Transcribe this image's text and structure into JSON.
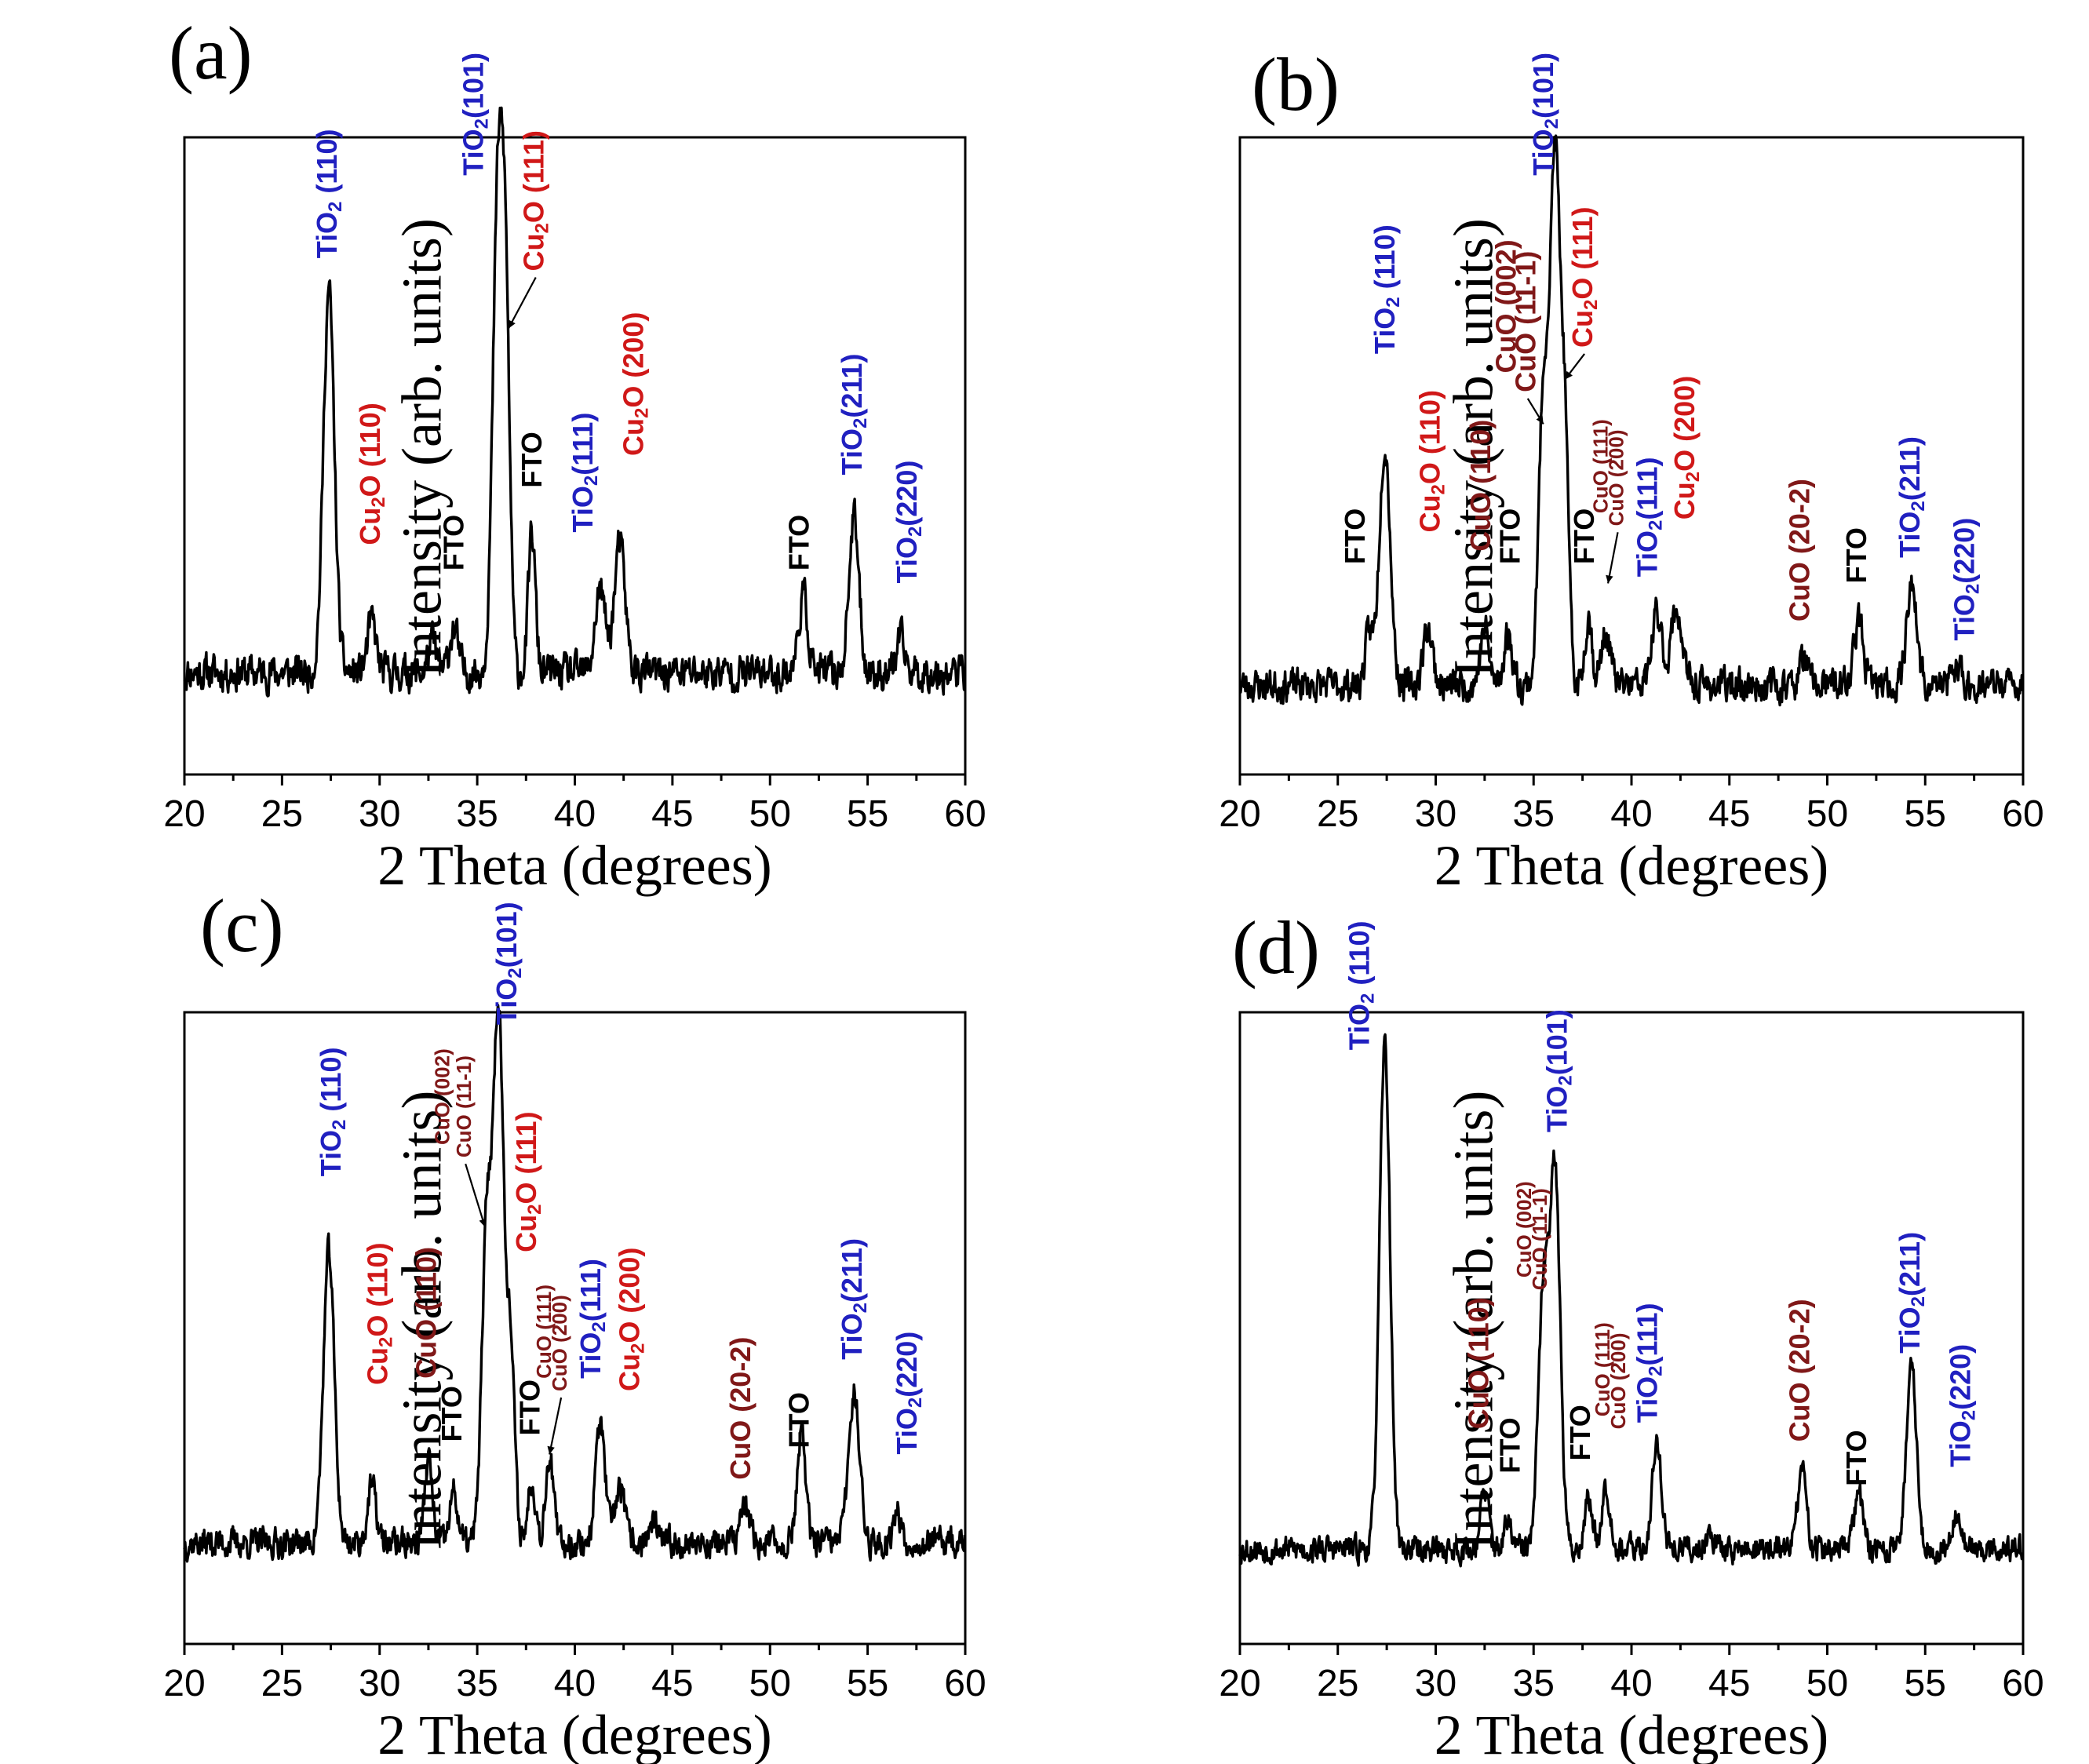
{
  "colors": {
    "tio2": "#2020c0",
    "cu2o": "#d01818",
    "cuo": "#801818",
    "fto": "#000000",
    "trace": "#000000"
  },
  "chart_data": [
    {
      "type": "line",
      "panel": "(a)",
      "xlabel": "2 Theta (degrees)",
      "ylabel": "Intensity (arb. units)",
      "xlim": [
        20,
        60
      ],
      "ylim": [
        0,
        100
      ],
      "xticks": [
        "20",
        "25",
        "30",
        "35",
        "40",
        "45",
        "50",
        "55",
        "60"
      ],
      "baseline": 16,
      "noise": 2.4,
      "seed": 11,
      "peaks": [
        {
          "x": 27.4,
          "h": 60,
          "w": 0.28
        },
        {
          "x": 29.6,
          "h": 8,
          "w": 0.22
        },
        {
          "x": 32.7,
          "h": 5,
          "w": 0.2
        },
        {
          "x": 33.8,
          "h": 7,
          "w": 0.22
        },
        {
          "x": 36.1,
          "h": 80,
          "w": 0.28
        },
        {
          "x": 36.5,
          "h": 38,
          "w": 0.2
        },
        {
          "x": 37.8,
          "h": 22,
          "w": 0.18
        },
        {
          "x": 41.3,
          "h": 13,
          "w": 0.26
        },
        {
          "x": 42.3,
          "h": 20,
          "w": 0.28
        },
        {
          "x": 51.7,
          "h": 12,
          "w": 0.24
        },
        {
          "x": 54.3,
          "h": 24,
          "w": 0.26
        },
        {
          "x": 56.7,
          "h": 5,
          "w": 0.22
        }
      ],
      "annotations": [
        {
          "text": "TiO2 (110)",
          "phase": "tio2",
          "x": 27.4,
          "y": 81
        },
        {
          "text": "Cu2O (110)",
          "phase": "cu2o",
          "x": 29.6,
          "y": 36
        },
        {
          "text": "FTO",
          "phase": "fto",
          "x": 33.9,
          "y": 32
        },
        {
          "text": "TiO2(101)",
          "phase": "tio2",
          "x": 34.9,
          "y": 94
        },
        {
          "text": "Cu2O (111)",
          "phase": "cu2o",
          "x": 38.0,
          "y": 79,
          "arrow_to": [
            36.6,
            70
          ]
        },
        {
          "text": "FTO",
          "phase": "fto",
          "x": 37.9,
          "y": 45
        },
        {
          "text": "TiO2(111)",
          "phase": "tio2",
          "x": 40.5,
          "y": 38
        },
        {
          "text": "Cu2O (200)",
          "phase": "cu2o",
          "x": 43.1,
          "y": 50
        },
        {
          "text": "FTO",
          "phase": "fto",
          "x": 51.6,
          "y": 32
        },
        {
          "text": "TiO2(211)",
          "phase": "tio2",
          "x": 54.3,
          "y": 47
        },
        {
          "text": "TiO2(220)",
          "phase": "tio2",
          "x": 57.1,
          "y": 30
        }
      ]
    },
    {
      "type": "line",
      "panel": "(b)",
      "xlabel": "2 Theta (degrees)",
      "ylabel": "Intensity (arb. units)",
      "xlim": [
        20,
        60
      ],
      "ylim": [
        0,
        100
      ],
      "xticks": [
        "20",
        "25",
        "30",
        "35",
        "40",
        "45",
        "50",
        "55",
        "60"
      ],
      "baseline": 14,
      "noise": 2.2,
      "seed": 23,
      "peaks": [
        {
          "x": 26.6,
          "h": 8,
          "w": 0.2
        },
        {
          "x": 27.4,
          "h": 38,
          "w": 0.28
        },
        {
          "x": 29.6,
          "h": 9,
          "w": 0.24
        },
        {
          "x": 32.5,
          "h": 9,
          "w": 0.22
        },
        {
          "x": 33.7,
          "h": 8,
          "w": 0.22
        },
        {
          "x": 35.5,
          "h": 45,
          "w": 0.24
        },
        {
          "x": 36.1,
          "h": 82,
          "w": 0.26
        },
        {
          "x": 36.6,
          "h": 35,
          "w": 0.2
        },
        {
          "x": 37.8,
          "h": 11,
          "w": 0.18
        },
        {
          "x": 38.7,
          "h": 8,
          "w": 0.24
        },
        {
          "x": 41.3,
          "h": 11,
          "w": 0.26
        },
        {
          "x": 42.3,
          "h": 12,
          "w": 0.28
        },
        {
          "x": 48.8,
          "h": 4,
          "w": 0.22
        },
        {
          "x": 51.6,
          "h": 10,
          "w": 0.24
        },
        {
          "x": 54.3,
          "h": 16,
          "w": 0.26
        },
        {
          "x": 56.6,
          "h": 3,
          "w": 0.22
        }
      ],
      "annotations": [
        {
          "text": "FTO",
          "phase": "fto",
          "x": 26.0,
          "y": 33
        },
        {
          "text": "TiO2 (110)",
          "phase": "tio2",
          "x": 27.5,
          "y": 66
        },
        {
          "text": "Cu2O (110)",
          "phase": "cu2o",
          "x": 29.8,
          "y": 38
        },
        {
          "text": "CuO (110)",
          "phase": "cuo",
          "x": 32.4,
          "y": 35
        },
        {
          "text": "FTO",
          "phase": "fto",
          "x": 33.9,
          "y": 33
        },
        {
          "text": "CuO (002)",
          "phase": "cuo",
          "x": 33.7,
          "y": 63
        },
        {
          "text": "CuO (11-1)",
          "phase": "cuo",
          "x": 34.7,
          "y": 60,
          "arrow_to": [
            35.5,
            55
          ]
        },
        {
          "text": "TiO2(101)",
          "phase": "tio2",
          "x": 35.6,
          "y": 94
        },
        {
          "text": "Cu2O (111)",
          "phase": "cu2o",
          "x": 37.6,
          "y": 67,
          "arrow_to": [
            36.6,
            62
          ]
        },
        {
          "text": "FTO",
          "phase": "fto",
          "x": 37.7,
          "y": 33
        },
        {
          "text": "CuO (111)",
          "phase": "cuo",
          "x": 38.5,
          "y": 41,
          "small": true
        },
        {
          "text": "CuO (200)",
          "phase": "cuo",
          "x": 39.3,
          "y": 39,
          "small": true,
          "arrow_to": [
            38.8,
            30
          ]
        },
        {
          "text": "TiO2(111)",
          "phase": "tio2",
          "x": 40.9,
          "y": 31
        },
        {
          "text": "Cu2O (200)",
          "phase": "cu2o",
          "x": 42.8,
          "y": 40
        },
        {
          "text": "CuO (20-2)",
          "phase": "cuo",
          "x": 48.7,
          "y": 24
        },
        {
          "text": "FTO",
          "phase": "fto",
          "x": 51.6,
          "y": 30
        },
        {
          "text": "TiO2(211)",
          "phase": "tio2",
          "x": 54.3,
          "y": 34
        },
        {
          "text": "TiO2(220)",
          "phase": "tio2",
          "x": 57.1,
          "y": 21
        }
      ]
    },
    {
      "type": "line",
      "panel": "(c)",
      "xlabel": "2 Theta (degrees)",
      "ylabel": "Intensity (arb. units)",
      "xlim": [
        20,
        60
      ],
      "ylim": [
        0,
        100
      ],
      "xticks": [
        "20",
        "25",
        "30",
        "35",
        "40",
        "45",
        "50",
        "55",
        "60"
      ],
      "baseline": 16,
      "noise": 2.0,
      "seed": 37,
      "peaks": [
        {
          "x": 27.4,
          "h": 46,
          "w": 0.28
        },
        {
          "x": 29.6,
          "h": 9,
          "w": 0.22
        },
        {
          "x": 32.5,
          "h": 13,
          "w": 0.2
        },
        {
          "x": 33.8,
          "h": 8,
          "w": 0.2
        },
        {
          "x": 35.5,
          "h": 50,
          "w": 0.26
        },
        {
          "x": 36.1,
          "h": 82,
          "w": 0.26
        },
        {
          "x": 36.7,
          "h": 30,
          "w": 0.22
        },
        {
          "x": 37.8,
          "h": 10,
          "w": 0.2
        },
        {
          "x": 38.7,
          "h": 14,
          "w": 0.2
        },
        {
          "x": 41.3,
          "h": 19,
          "w": 0.24
        },
        {
          "x": 42.3,
          "h": 9,
          "w": 0.24
        },
        {
          "x": 44.0,
          "h": 3,
          "w": 0.2
        },
        {
          "x": 48.7,
          "h": 6,
          "w": 0.22
        },
        {
          "x": 51.6,
          "h": 17,
          "w": 0.22
        },
        {
          "x": 54.3,
          "h": 24,
          "w": 0.28
        },
        {
          "x": 56.5,
          "h": 5,
          "w": 0.2
        }
      ],
      "annotations": [
        {
          "text": "TiO2 (110)",
          "phase": "tio2",
          "x": 27.6,
          "y": 74
        },
        {
          "text": "Cu2O (110)",
          "phase": "cu2o",
          "x": 30.0,
          "y": 41
        },
        {
          "text": "CuO (110)",
          "phase": "cuo",
          "x": 32.5,
          "y": 42
        },
        {
          "text": "FTO",
          "phase": "fto",
          "x": 33.8,
          "y": 32
        },
        {
          "text": "CuO (002)",
          "phase": "cuo",
          "x": 33.3,
          "y": 79,
          "small": true
        },
        {
          "text": "CuO (11-1)",
          "phase": "cuo",
          "x": 34.4,
          "y": 77,
          "small": true,
          "arrow_to": [
            35.4,
            66
          ]
        },
        {
          "text": "TiO2(101)",
          "phase": "tio2",
          "x": 36.6,
          "y": 98
        },
        {
          "text": "Cu2O (111)",
          "phase": "cu2o",
          "x": 37.6,
          "y": 62
        },
        {
          "text": "FTO",
          "phase": "fto",
          "x": 37.8,
          "y": 33
        },
        {
          "text": "CuO (111)",
          "phase": "cuo",
          "x": 38.5,
          "y": 42,
          "small": true
        },
        {
          "text": "CuO (200)",
          "phase": "cuo",
          "x": 39.3,
          "y": 40,
          "small": true,
          "arrow_to": [
            38.7,
            30
          ]
        },
        {
          "text": "TiO2(111)",
          "phase": "tio2",
          "x": 40.9,
          "y": 42
        },
        {
          "text": "Cu2O (200)",
          "phase": "cu2o",
          "x": 42.9,
          "y": 40
        },
        {
          "text": "CuO (20-2)",
          "phase": "cuo",
          "x": 48.6,
          "y": 26
        },
        {
          "text": "FTO",
          "phase": "fto",
          "x": 51.6,
          "y": 31
        },
        {
          "text": "TiO2(211)",
          "phase": "tio2",
          "x": 54.3,
          "y": 45
        },
        {
          "text": "TiO2(220)",
          "phase": "tio2",
          "x": 57.1,
          "y": 30
        }
      ]
    },
    {
      "type": "line",
      "panel": "(d)",
      "xlabel": "2 Theta (degrees)",
      "ylabel": "Intensity (arb. units)",
      "xlim": [
        20,
        60
      ],
      "ylim": [
        0,
        100
      ],
      "xticks": [
        "20",
        "25",
        "30",
        "35",
        "40",
        "45",
        "50",
        "55",
        "60"
      ],
      "baseline": 15,
      "noise": 1.8,
      "seed": 53,
      "peaks": [
        {
          "x": 27.4,
          "h": 80,
          "w": 0.27
        },
        {
          "x": 32.5,
          "h": 9,
          "w": 0.22
        },
        {
          "x": 33.7,
          "h": 4,
          "w": 0.2
        },
        {
          "x": 35.5,
          "h": 40,
          "w": 0.26
        },
        {
          "x": 36.1,
          "h": 60,
          "w": 0.26
        },
        {
          "x": 37.8,
          "h": 8,
          "w": 0.2
        },
        {
          "x": 38.7,
          "h": 10,
          "w": 0.22
        },
        {
          "x": 41.3,
          "h": 17,
          "w": 0.24
        },
        {
          "x": 44.0,
          "h": 3,
          "w": 0.2
        },
        {
          "x": 48.7,
          "h": 12,
          "w": 0.24
        },
        {
          "x": 51.6,
          "h": 9,
          "w": 0.22
        },
        {
          "x": 54.3,
          "h": 29,
          "w": 0.26
        },
        {
          "x": 56.6,
          "h": 6,
          "w": 0.22
        }
      ],
      "annotations": [
        {
          "text": "TiO2 (110)",
          "phase": "tio2",
          "x": 26.2,
          "y": 94
        },
        {
          "text": "CuO (110)",
          "phase": "cuo",
          "x": 32.3,
          "y": 34
        },
        {
          "text": "FTO",
          "phase": "fto",
          "x": 33.9,
          "y": 27
        },
        {
          "text": "CuO (002)",
          "phase": "cuo",
          "x": 34.6,
          "y": 58,
          "small": true
        },
        {
          "text": "CuO (11-1)",
          "phase": "cuo",
          "x": 35.4,
          "y": 56,
          "small": true
        },
        {
          "text": "TiO2(101)",
          "phase": "tio2",
          "x": 36.3,
          "y": 81
        },
        {
          "text": "FTO",
          "phase": "fto",
          "x": 37.5,
          "y": 29
        },
        {
          "text": "CuO (111)",
          "phase": "cuo",
          "x": 38.6,
          "y": 36,
          "small": true
        },
        {
          "text": "CuO (200)",
          "phase": "cuo",
          "x": 39.4,
          "y": 34,
          "small": true
        },
        {
          "text": "TiO2(111)",
          "phase": "tio2",
          "x": 40.9,
          "y": 35
        },
        {
          "text": "CuO (20-2)",
          "phase": "cuo",
          "x": 48.7,
          "y": 32
        },
        {
          "text": "FTO",
          "phase": "fto",
          "x": 51.6,
          "y": 25
        },
        {
          "text": "TiO2(211)",
          "phase": "tio2",
          "x": 54.3,
          "y": 46
        },
        {
          "text": "TiO2(220)",
          "phase": "tio2",
          "x": 56.9,
          "y": 28
        }
      ]
    }
  ]
}
